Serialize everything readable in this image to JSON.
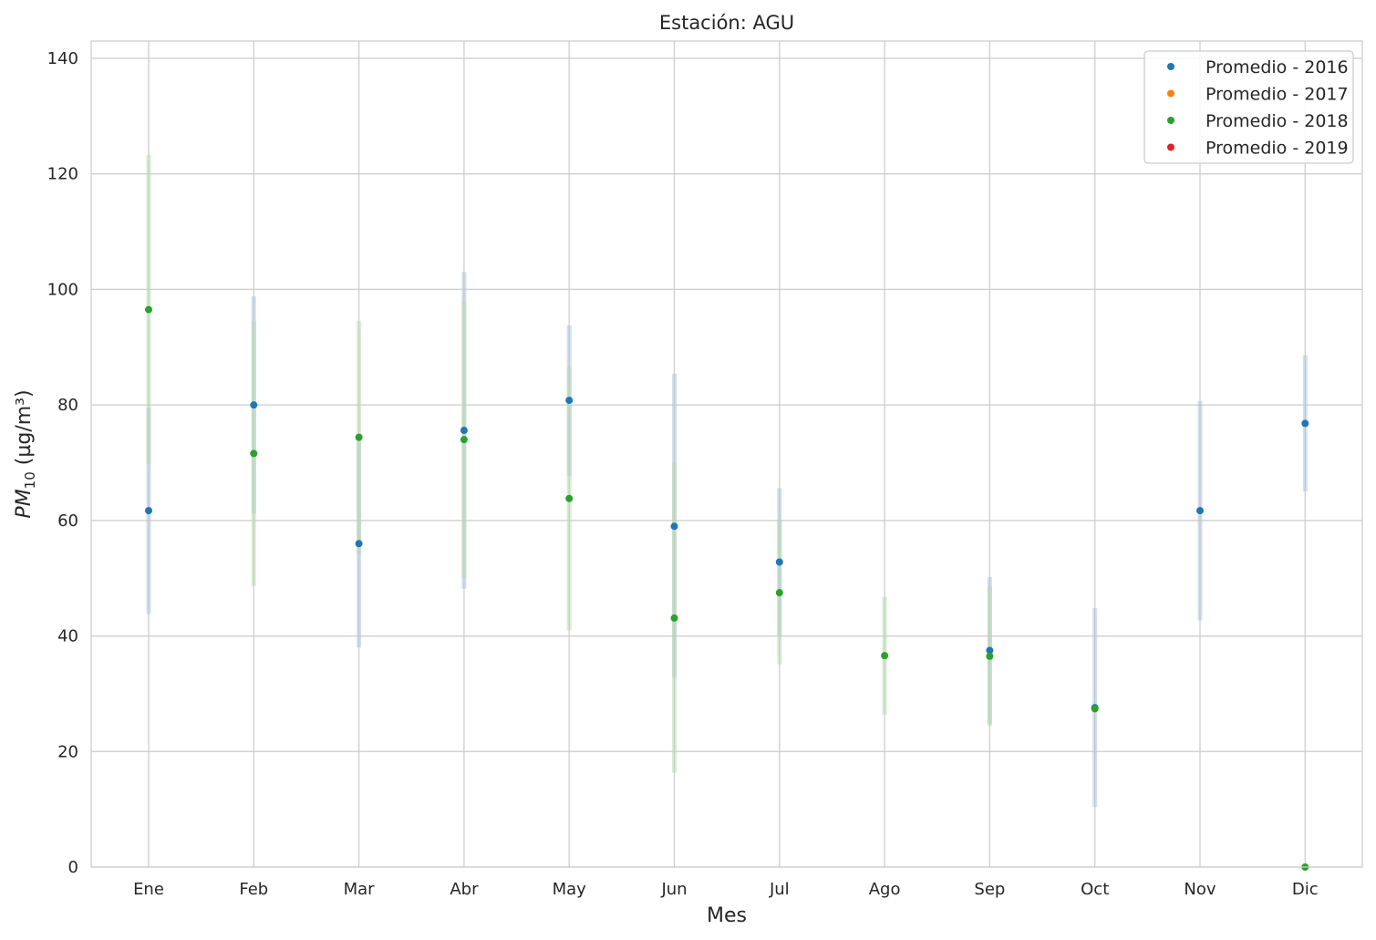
{
  "chart_data": {
    "type": "scatter",
    "title": "Estación: AGU",
    "xlabel": "Mes",
    "ylabel": "PM10 (µg/m³)",
    "ylabel_main": "PM",
    "ylabel_sub": "10",
    "ylabel_unit": " (µg/m³)",
    "ylim": [
      0,
      143
    ],
    "yticks": [
      0,
      20,
      40,
      60,
      80,
      100,
      120,
      140
    ],
    "grid": true,
    "legend_position": "top-right",
    "categories": [
      "Ene",
      "Feb",
      "Mar",
      "Abr",
      "May",
      "Jun",
      "Jul",
      "Ago",
      "Sep",
      "Oct",
      "Nov",
      "Dic"
    ],
    "series": [
      {
        "name": "Promedio - 2016",
        "color": "#1f77b4",
        "band_color": "#b0c4de",
        "values": [
          61.7,
          80.0,
          56.0,
          75.6,
          80.8,
          59.0,
          52.8,
          null,
          37.5,
          27.6,
          61.7,
          76.8
        ],
        "lower": [
          43.8,
          61.2,
          38.0,
          48.2,
          67.7,
          32.8,
          40.0,
          null,
          24.8,
          10.4,
          42.7,
          65.0
        ],
        "upper": [
          79.5,
          98.8,
          74.0,
          103.0,
          93.8,
          85.4,
          65.6,
          null,
          50.2,
          44.8,
          80.7,
          88.6
        ]
      },
      {
        "name": "Promedio - 2017",
        "color": "#ff7f0e",
        "values": [
          null,
          null,
          null,
          null,
          null,
          null,
          null,
          null,
          null,
          null,
          null,
          null
        ]
      },
      {
        "name": "Promedio - 2018",
        "color": "#2ca02c",
        "band_color": "#b8dcb0",
        "values": [
          96.5,
          71.6,
          74.4,
          74.0,
          63.8,
          43.1,
          47.5,
          36.6,
          36.5,
          27.4,
          null,
          0.0
        ],
        "lower": [
          69.7,
          48.7,
          54.2,
          50.0,
          41.0,
          16.3,
          35.1,
          26.4,
          24.4,
          null,
          null,
          0.0
        ],
        "upper": [
          123.3,
          94.5,
          94.6,
          98.0,
          86.6,
          69.9,
          59.9,
          46.8,
          48.6,
          null,
          null,
          0.0
        ]
      },
      {
        "name": "Promedio - 2019",
        "color": "#d62728",
        "values": [
          null,
          null,
          null,
          null,
          null,
          null,
          null,
          null,
          null,
          null,
          null,
          null
        ]
      }
    ]
  }
}
